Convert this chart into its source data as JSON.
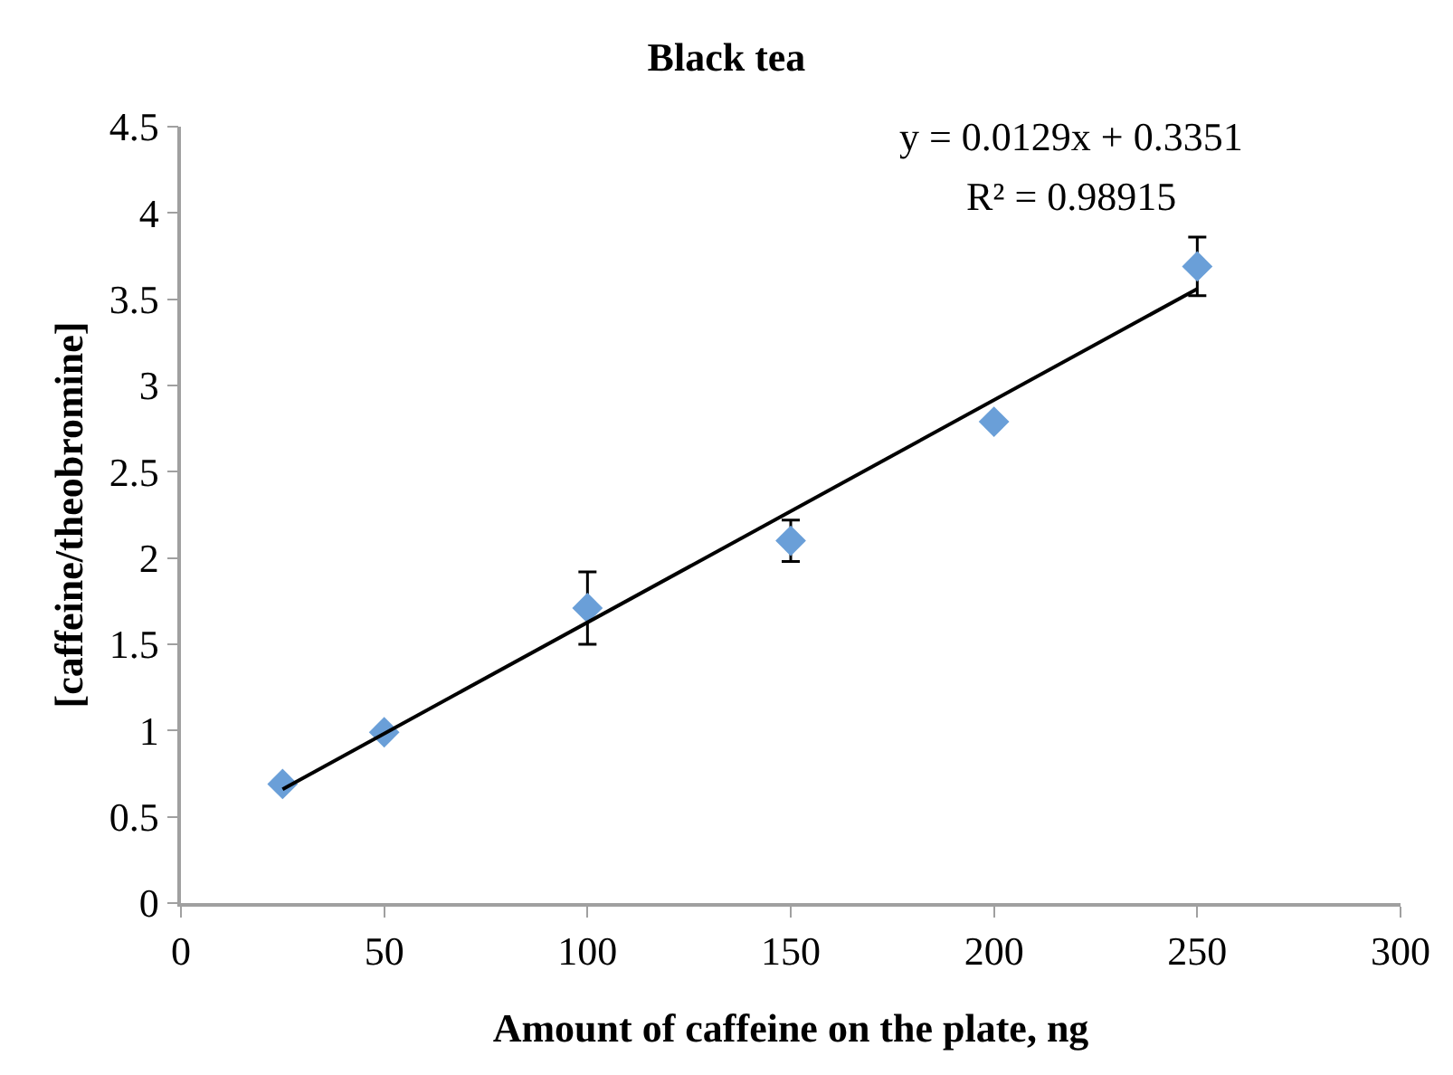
{
  "chart_data": {
    "type": "scatter",
    "title": "Black tea",
    "xlabel": "Amount of caffeine on the plate, ng",
    "ylabel": "[caffeine/theobromine]",
    "x": [
      25,
      50,
      100,
      150,
      200,
      250
    ],
    "series": [
      {
        "color": "#6a9fd8",
        "marker": "diamond",
        "values": [
          0.69,
          0.99,
          1.71,
          2.1,
          2.79,
          3.69
        ],
        "errors": [
          null,
          null,
          0.21,
          0.12,
          null,
          0.17
        ]
      },
      {
        "type": "line",
        "color": "#000000",
        "marker": "none",
        "line_style": "solid",
        "x": [
          25,
          250
        ],
        "values": [
          0.66,
          3.56
        ]
      }
    ],
    "annotations": [
      "y = 0.0129x + 0.3351",
      "R² = 0.98915"
    ],
    "xlim": [
      0,
      300
    ],
    "xticks": [
      0,
      50,
      100,
      150,
      200,
      250,
      300
    ],
    "ylim": [
      0,
      4.5
    ],
    "yticks": [
      0,
      0.5,
      1,
      1.5,
      2,
      2.5,
      3,
      3.5,
      4,
      4.5
    ]
  }
}
